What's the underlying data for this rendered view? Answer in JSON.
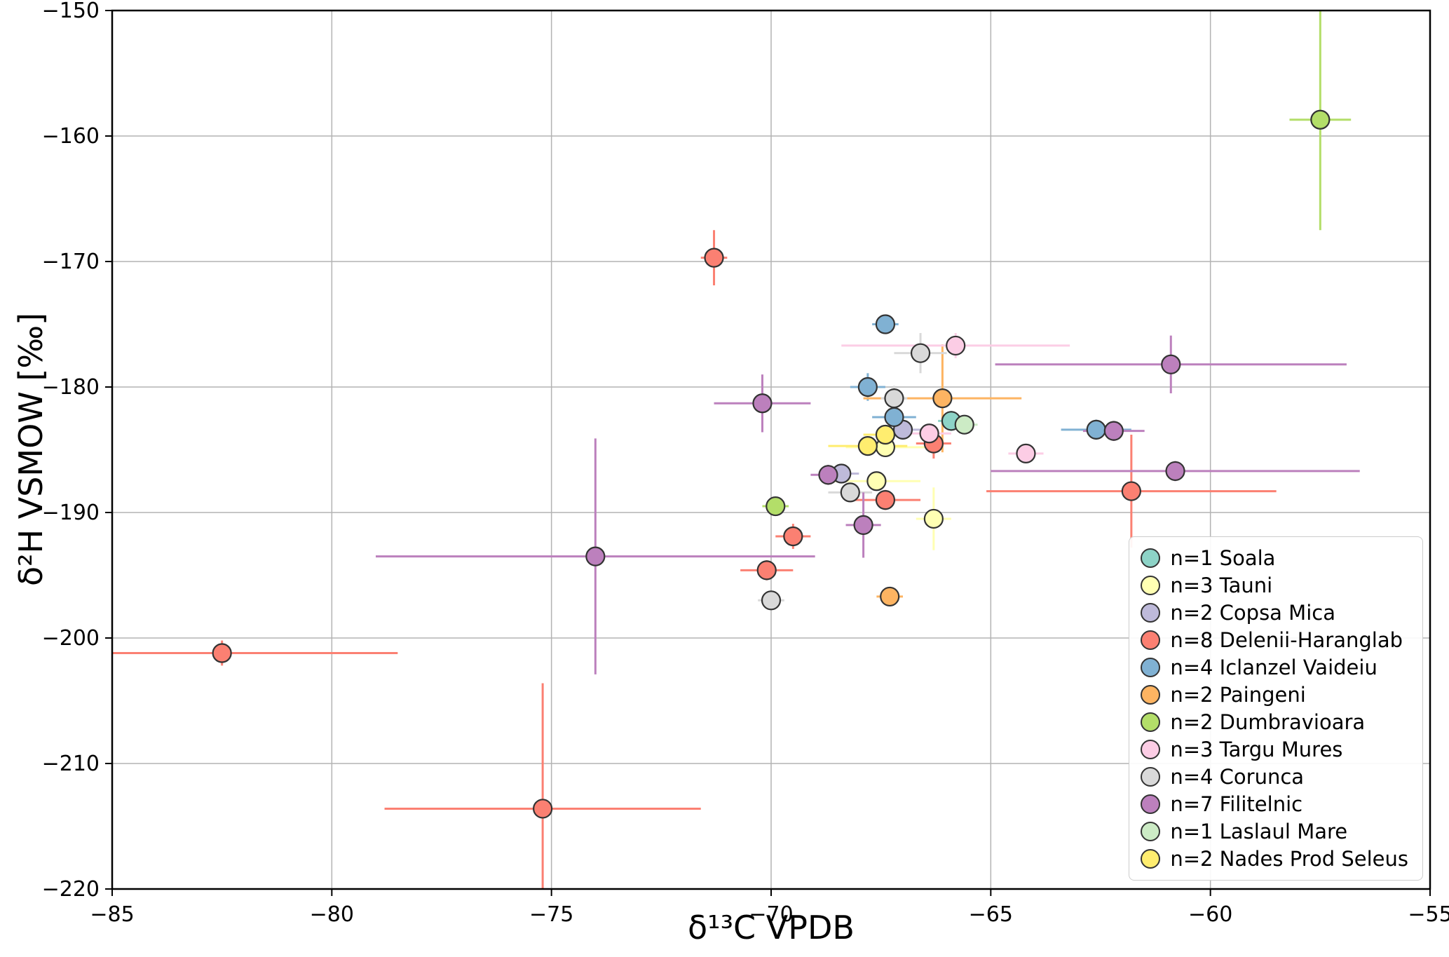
{
  "chart_data": {
    "type": "scatter",
    "title": "",
    "xlabel": "δ¹³C VPDB",
    "ylabel": "δ²H VSMOW [‰]",
    "xlim": [
      -85,
      -55
    ],
    "ylim": [
      -220,
      -150
    ],
    "xticks": [
      -85,
      -80,
      -75,
      -70,
      -65,
      -60,
      -55
    ],
    "yticks": [
      -220,
      -210,
      -200,
      -190,
      -180,
      -170,
      -160,
      -150
    ],
    "grid": true,
    "grid_color": "#b3b3b3",
    "legend_position": "lower right",
    "marker_edge_color": "#333333",
    "series": [
      {
        "name": "n=1 Soala",
        "color": "#8dd3c7",
        "points": [
          {
            "x": -65.9,
            "y": -182.7,
            "xerr": 0.3,
            "yerr": 0.8
          }
        ]
      },
      {
        "name": "n=3 Tauni",
        "color": "#ffffb3",
        "points": [
          {
            "x": -67.4,
            "y": -184.8,
            "xerr": 0.9,
            "yerr": 0.5
          },
          {
            "x": -67.6,
            "y": -187.5,
            "xerr": 1.0,
            "yerr": 0.5
          },
          {
            "x": -66.3,
            "y": -190.5,
            "xerr": 0.4,
            "yerr": 2.5
          }
        ]
      },
      {
        "name": "n=2 Copsa Mica",
        "color": "#bebada",
        "points": [
          {
            "x": -68.4,
            "y": -186.9,
            "xerr": 0.4,
            "yerr": 0.6
          },
          {
            "x": -67.0,
            "y": -183.4,
            "xerr": 0.5,
            "yerr": 0.8
          }
        ]
      },
      {
        "name": "n=8 Delenii-Haranglab",
        "color": "#fb8072",
        "points": [
          {
            "x": -82.5,
            "y": -201.2,
            "xerr": 4.0,
            "yerr": 1.0
          },
          {
            "x": -75.2,
            "y": -213.6,
            "xerr": 3.6,
            "yerr": 10.0
          },
          {
            "x": -71.3,
            "y": -169.7,
            "xerr": 0.3,
            "yerr": 2.2
          },
          {
            "x": -70.1,
            "y": -194.6,
            "xerr": 0.6,
            "yerr": 0.8
          },
          {
            "x": -69.5,
            "y": -191.9,
            "xerr": 0.4,
            "yerr": 1.0
          },
          {
            "x": -67.4,
            "y": -189.0,
            "xerr": 0.8,
            "yerr": 0.8
          },
          {
            "x": -66.3,
            "y": -184.5,
            "xerr": 0.4,
            "yerr": 1.2
          },
          {
            "x": -61.8,
            "y": -188.3,
            "xerr": 3.3,
            "yerr": 4.5
          }
        ]
      },
      {
        "name": "n=4 Iclanzel Vaideiu",
        "color": "#80b1d3",
        "points": [
          {
            "x": -67.4,
            "y": -175.0,
            "xerr": 0.3,
            "yerr": 0.6
          },
          {
            "x": -67.8,
            "y": -180.0,
            "xerr": 0.4,
            "yerr": 1.1
          },
          {
            "x": -67.2,
            "y": -182.4,
            "xerr": 0.5,
            "yerr": 0.8
          },
          {
            "x": -62.6,
            "y": -183.4,
            "xerr": 0.8,
            "yerr": 0.8
          }
        ]
      },
      {
        "name": "n=2 Paingeni",
        "color": "#fdb462",
        "points": [
          {
            "x": -66.1,
            "y": -180.9,
            "xerr": 1.8,
            "yerr": 4.3
          },
          {
            "x": -67.3,
            "y": -196.7,
            "xerr": 0.3,
            "yerr": 0.7
          }
        ]
      },
      {
        "name": "n=2 Dumbravioara",
        "color": "#b3de69",
        "points": [
          {
            "x": -57.5,
            "y": -158.7,
            "xerr": 0.7,
            "yerr": 8.8
          },
          {
            "x": -69.9,
            "y": -189.5,
            "xerr": 0.3,
            "yerr": 0.6
          }
        ]
      },
      {
        "name": "n=3 Targu Mures",
        "color": "#fccde5",
        "points": [
          {
            "x": -65.8,
            "y": -176.7,
            "xerr": 2.6,
            "yerr": 1.0
          },
          {
            "x": -66.4,
            "y": -183.7,
            "xerr": 0.5,
            "yerr": 0.7
          },
          {
            "x": -64.2,
            "y": -185.3,
            "xerr": 0.4,
            "yerr": 0.6
          }
        ]
      },
      {
        "name": "n=4 Corunca",
        "color": "#d9d9d9",
        "points": [
          {
            "x": -66.6,
            "y": -177.3,
            "xerr": 0.6,
            "yerr": 1.6
          },
          {
            "x": -67.2,
            "y": -180.9,
            "xerr": 0.3,
            "yerr": 1.0
          },
          {
            "x": -68.2,
            "y": -188.4,
            "xerr": 0.5,
            "yerr": 0.7
          },
          {
            "x": -70.0,
            "y": -197.0,
            "xerr": 0.3,
            "yerr": 0.6
          }
        ]
      },
      {
        "name": "n=7 Filitelnic",
        "color": "#bc80bd",
        "points": [
          {
            "x": -74.0,
            "y": -193.5,
            "xerr": 5.0,
            "yerr": 9.4
          },
          {
            "x": -70.2,
            "y": -181.3,
            "xerr": 1.1,
            "yerr": 2.3
          },
          {
            "x": -68.7,
            "y": -187.0,
            "xerr": 0.4,
            "yerr": 0.8
          },
          {
            "x": -67.9,
            "y": -191.0,
            "xerr": 0.4,
            "yerr": 2.6
          },
          {
            "x": -62.2,
            "y": -183.5,
            "xerr": 0.7,
            "yerr": 0.8
          },
          {
            "x": -60.9,
            "y": -178.2,
            "xerr": 4.0,
            "yerr": 2.3
          },
          {
            "x": -60.8,
            "y": -186.7,
            "xerr": 4.2,
            "yerr": 0.8
          }
        ]
      },
      {
        "name": "n=1 Laslaul Mare",
        "color": "#ccebc5",
        "points": [
          {
            "x": -65.6,
            "y": -183.0,
            "xerr": 0.3,
            "yerr": 0.7
          }
        ]
      },
      {
        "name": "n=2 Nades Prod Seleus",
        "color": "#ffed6f",
        "points": [
          {
            "x": -67.8,
            "y": -184.7,
            "xerr": 0.9,
            "yerr": 0.6
          },
          {
            "x": -67.4,
            "y": -183.8,
            "xerr": 0.5,
            "yerr": 0.6
          }
        ]
      }
    ]
  }
}
